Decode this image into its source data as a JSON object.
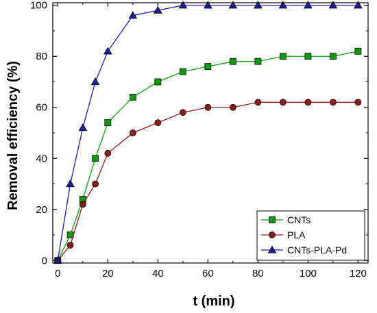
{
  "chart_data": {
    "type": "line",
    "xlabel": "t (min)",
    "ylabel": "Removal efficiency (%)",
    "xlim": [
      -2,
      124
    ],
    "ylim": [
      -1,
      101
    ],
    "xticks": [
      0,
      20,
      40,
      60,
      80,
      100,
      120
    ],
    "yticks": [
      0,
      20,
      40,
      60,
      80,
      100
    ],
    "grid": false,
    "legend_position": "bottom-right",
    "series": [
      {
        "name": "CNTs",
        "color": "#119911",
        "marker": "square",
        "x": [
          0,
          5,
          10,
          15,
          20,
          30,
          40,
          50,
          60,
          70,
          80,
          90,
          100,
          110,
          120
        ],
        "y": [
          0,
          10,
          24,
          40,
          54,
          64,
          70,
          74,
          76,
          78,
          78,
          80,
          80,
          80,
          82
        ]
      },
      {
        "name": "PLA",
        "color": "#8b1a1a",
        "marker": "circle",
        "x": [
          0,
          5,
          10,
          15,
          20,
          30,
          40,
          50,
          60,
          70,
          80,
          90,
          100,
          110,
          120
        ],
        "y": [
          0,
          6,
          22,
          30,
          42,
          50,
          54,
          58,
          60,
          60,
          62,
          62,
          62,
          62,
          62
        ]
      },
      {
        "name": "CNTs-PLA-Pd",
        "color": "#1c1c9c",
        "marker": "triangle",
        "x": [
          0,
          5,
          10,
          15,
          20,
          30,
          40,
          50,
          60,
          70,
          80,
          90,
          100,
          110,
          120
        ],
        "y": [
          0,
          30,
          52,
          70,
          82,
          96,
          98,
          100,
          100,
          100,
          100,
          100,
          100,
          100,
          100
        ]
      }
    ]
  }
}
